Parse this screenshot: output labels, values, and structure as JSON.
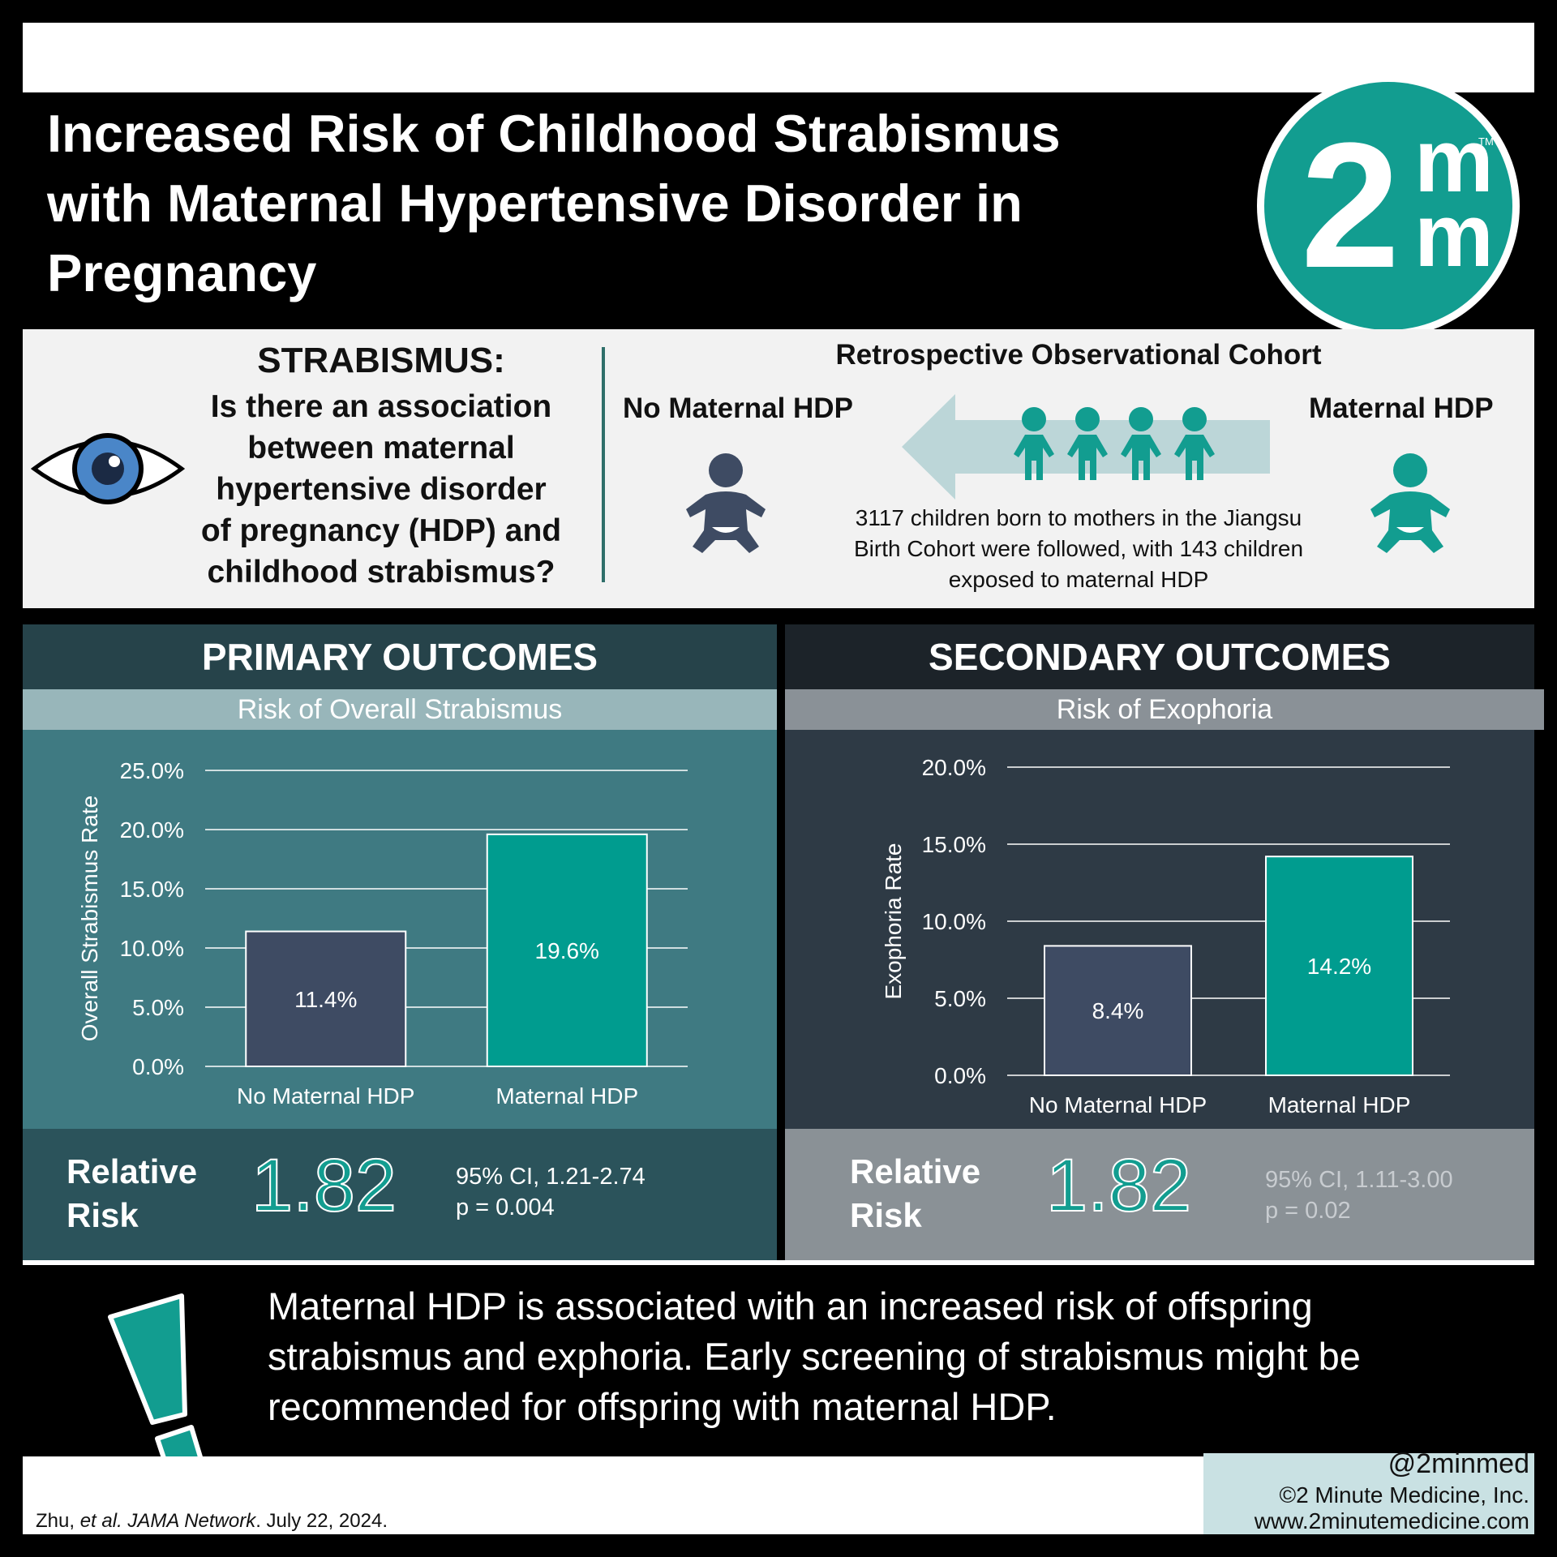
{
  "header": {
    "title_line1": "Increased Risk of Childhood Strabismus",
    "title_line2": "with Maternal Hypertensive Disorder in",
    "title_line3": "Pregnancy",
    "logo_number": "2",
    "logo_letter_top": "m",
    "logo_letter_bottom": "m",
    "logo_tm": "TM"
  },
  "study": {
    "question_title": "STRABISMUS:",
    "question_lines": [
      "Is there an association",
      "between maternal",
      "hypertensive disorder",
      "of pregnancy (HDP) and",
      "childhood strabismus?"
    ],
    "cohort_title": "Retrospective Observational Cohort",
    "group_no": "No Maternal HDP",
    "group_yes": "Maternal HDP",
    "description_lines": [
      "3117 children born to mothers in the Jiangsu",
      "Birth Cohort were followed, with 143 children",
      "exposed to maternal HDP"
    ]
  },
  "primary": {
    "heading": "PRIMARY OUTCOMES",
    "subheading": "Risk of Overall Strabismus",
    "rr_label_line1": "Relative",
    "rr_label_line2": "Risk",
    "rr_value": "1.82",
    "ci": "95% CI, 1.21-2.74",
    "p": "p = 0.004"
  },
  "secondary": {
    "heading": "SECONDARY OUTCOMES",
    "subheading": "Risk of Exophoria",
    "rr_label_line1": "Relative",
    "rr_label_line2": "Risk",
    "rr_value": "1.82",
    "ci": "95% CI, 1.11-3.00",
    "p": "p = 0.02"
  },
  "chart_data": [
    {
      "type": "bar",
      "title": "Risk of Overall Strabismus",
      "categories": [
        "No Maternal HDP",
        "Maternal HDP"
      ],
      "values": [
        11.4,
        19.6
      ],
      "data_labels": [
        "11.4%",
        "19.6%"
      ],
      "ylabel": "Overall Strabismus Rate",
      "ylim": [
        0,
        25
      ],
      "yticks": [
        "0.0%",
        "5.0%",
        "10.0%",
        "15.0%",
        "20.0%",
        "25.0%"
      ],
      "grid": true,
      "colors": [
        "#3e4b63",
        "#009c8f"
      ]
    },
    {
      "type": "bar",
      "title": "Risk of Exophoria",
      "categories": [
        "No Maternal HDP",
        "Maternal HDP"
      ],
      "values": [
        8.4,
        14.2
      ],
      "data_labels": [
        "8.4%",
        "14.2%"
      ],
      "ylabel": "Exophoria Rate",
      "ylim": [
        0,
        20
      ],
      "yticks": [
        "0.0%",
        "5.0%",
        "10.0%",
        "15.0%",
        "20.0%"
      ],
      "grid": true,
      "colors": [
        "#3e4b63",
        "#009c8f"
      ]
    }
  ],
  "conclusion": {
    "lines": [
      "Maternal HDP is associated with an increased risk of offspring",
      "strabismus and exphoria. Early screening of strabismus might be",
      "recommended for offspring with maternal HDP."
    ]
  },
  "footer": {
    "citation_author": "Zhu, ",
    "citation_etal": "et al. JAMA Network",
    "citation_date": ". July 22, 2024.",
    "handle": "@2minmed",
    "copyright": "©2 Minute Medicine, Inc.",
    "website": "www.2minutemedicine.com"
  },
  "colors": {
    "teal": "#129d90",
    "navy_bar": "#3e4b63",
    "primary_panel": "#3f7a82",
    "secondary_panel": "#2e3a45"
  },
  "icons": [
    "eye-icon",
    "baby-icon",
    "children-icon",
    "arrow-left-icon",
    "exclamation-icon"
  ]
}
